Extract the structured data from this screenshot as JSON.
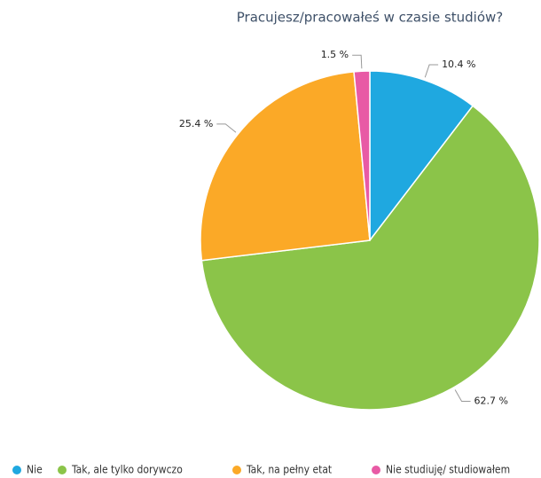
{
  "chart_data": {
    "type": "pie",
    "title": "Pracujesz/pracowałeś w czasie studiów?",
    "categories": [
      "Nie",
      "Tak, ale tylko dorywczo",
      "Tak, na pełny etat",
      "Nie studiuję/ studiowałem"
    ],
    "values": [
      10.4,
      62.7,
      25.4,
      1.5
    ],
    "value_labels": [
      "10.4 %",
      "62.7 %",
      "25.4 %",
      "1.5 %"
    ],
    "colors": [
      "#1fa8e0",
      "#8bc449",
      "#fba927",
      "#e85aa5"
    ],
    "legend": "bottom"
  }
}
